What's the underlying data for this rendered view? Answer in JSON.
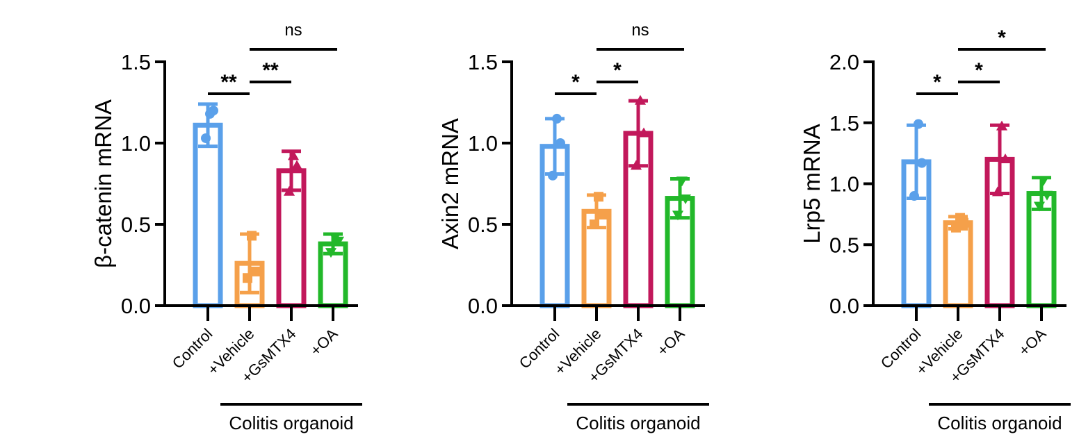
{
  "chart_data": [
    {
      "type": "bar",
      "ylabel": "β-catenin mRNA",
      "ylim": [
        0,
        1.5
      ],
      "yticks": [
        "0.0",
        "0.5",
        "1.0",
        "1.5"
      ],
      "categories": [
        "Control",
        "+Vehicle",
        "+GsMTX4",
        "+OA"
      ],
      "group_label": "Colitis organoid",
      "values": [
        1.11,
        0.26,
        0.83,
        0.38
      ],
      "errors": [
        0.13,
        0.18,
        0.12,
        0.06
      ],
      "points": [
        [
          1.03,
          1.2,
          1.18
        ],
        [
          0.17,
          0.21,
          0.43
        ],
        [
          0.7,
          0.86,
          0.92
        ],
        [
          0.33,
          0.4,
          0.42
        ]
      ],
      "colors": [
        "#5aa0ea",
        "#f5a04a",
        "#c2185b",
        "#22b82a"
      ],
      "markers": [
        "circle",
        "square",
        "triangle-up",
        "triangle-down"
      ],
      "comparisons": [
        {
          "from": "Control",
          "to": "+Vehicle",
          "label": "**"
        },
        {
          "from": "+Vehicle",
          "to": "+GsMTX4",
          "label": "**"
        },
        {
          "from": "+Vehicle",
          "to": "+OA",
          "label": "ns"
        }
      ]
    },
    {
      "type": "bar",
      "ylabel": "Axin2 mRNA",
      "ylim": [
        0,
        1.5
      ],
      "yticks": [
        "0.0",
        "0.5",
        "1.0",
        "1.5"
      ],
      "categories": [
        "Control",
        "+Vehicle",
        "+GsMTX4",
        "+OA"
      ],
      "group_label": "Colitis organoid",
      "values": [
        0.98,
        0.58,
        1.06,
        0.66
      ],
      "errors": [
        0.17,
        0.1,
        0.2,
        0.12
      ],
      "points": [
        [
          0.8,
          1.0,
          1.15
        ],
        [
          0.5,
          0.56,
          0.67
        ],
        [
          0.86,
          1.06,
          1.26
        ],
        [
          0.56,
          0.66,
          0.77
        ]
      ],
      "colors": [
        "#5aa0ea",
        "#f5a04a",
        "#c2185b",
        "#22b82a"
      ],
      "markers": [
        "circle",
        "square",
        "triangle-up",
        "triangle-down"
      ],
      "comparisons": [
        {
          "from": "Control",
          "to": "+Vehicle",
          "label": "*"
        },
        {
          "from": "+Vehicle",
          "to": "+GsMTX4",
          "label": "*"
        },
        {
          "from": "+Vehicle",
          "to": "+OA",
          "label": "ns"
        }
      ]
    },
    {
      "type": "bar",
      "ylabel": "Lrp5 mRNA",
      "ylim": [
        0,
        2.0
      ],
      "yticks": [
        "0.0",
        "0.5",
        "1.0",
        "1.5",
        "2.0"
      ],
      "categories": [
        "Control",
        "+Vehicle",
        "+GsMTX4",
        "+OA"
      ],
      "group_label": "Colitis organoid",
      "values": [
        1.18,
        0.68,
        1.2,
        0.92
      ],
      "errors": [
        0.3,
        0.05,
        0.28,
        0.13
      ],
      "points": [
        [
          0.9,
          1.17,
          1.49
        ],
        [
          0.64,
          0.68,
          0.72
        ],
        [
          0.93,
          1.2,
          1.47
        ],
        [
          0.82,
          0.91,
          1.03
        ]
      ],
      "colors": [
        "#5aa0ea",
        "#f5a04a",
        "#c2185b",
        "#22b82a"
      ],
      "markers": [
        "circle",
        "square",
        "triangle-up",
        "triangle-down"
      ],
      "comparisons": [
        {
          "from": "Control",
          "to": "+Vehicle",
          "label": "*"
        },
        {
          "from": "+Vehicle",
          "to": "+GsMTX4",
          "label": "*"
        },
        {
          "from": "+Vehicle",
          "to": "+OA",
          "label": "*"
        }
      ]
    }
  ]
}
